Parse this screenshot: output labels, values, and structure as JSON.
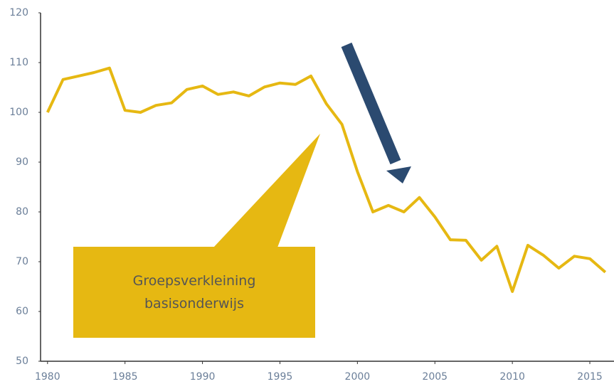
{
  "chart_data": {
    "type": "line",
    "x": [
      1980,
      1981,
      1982,
      1983,
      1984,
      1985,
      1986,
      1987,
      1988,
      1989,
      1990,
      1991,
      1992,
      1993,
      1994,
      1995,
      1996,
      1997,
      1998,
      1999,
      2000,
      2001,
      2002,
      2003,
      2004,
      2005,
      2006,
      2007,
      2008,
      2009,
      2010,
      2011,
      2012,
      2013,
      2014,
      2015,
      2016
    ],
    "values": [
      100,
      106.6,
      107.3,
      108,
      108.9,
      100.4,
      100,
      101.4,
      101.9,
      104.6,
      105.3,
      103.6,
      104.1,
      103.3,
      105.1,
      105.9,
      105.6,
      107.3,
      101.7,
      97.6,
      88.1,
      80,
      81.3,
      80,
      82.9,
      79,
      74.4,
      74.3,
      70.3,
      73.1,
      64,
      73.3,
      71.3,
      68.7,
      71.1,
      70.6,
      67.9
    ],
    "color": "#e6b812",
    "xlim": [
      1979.55,
      2016.56
    ],
    "xticks": [
      1980,
      1985,
      1990,
      1995,
      2000,
      2005,
      2010,
      2015
    ],
    "ylim": [
      50,
      120
    ],
    "yticks": [
      50,
      60,
      70,
      80,
      90,
      100,
      110,
      120
    ],
    "annotation": "Groepsverkleining basisonderwijs"
  }
}
